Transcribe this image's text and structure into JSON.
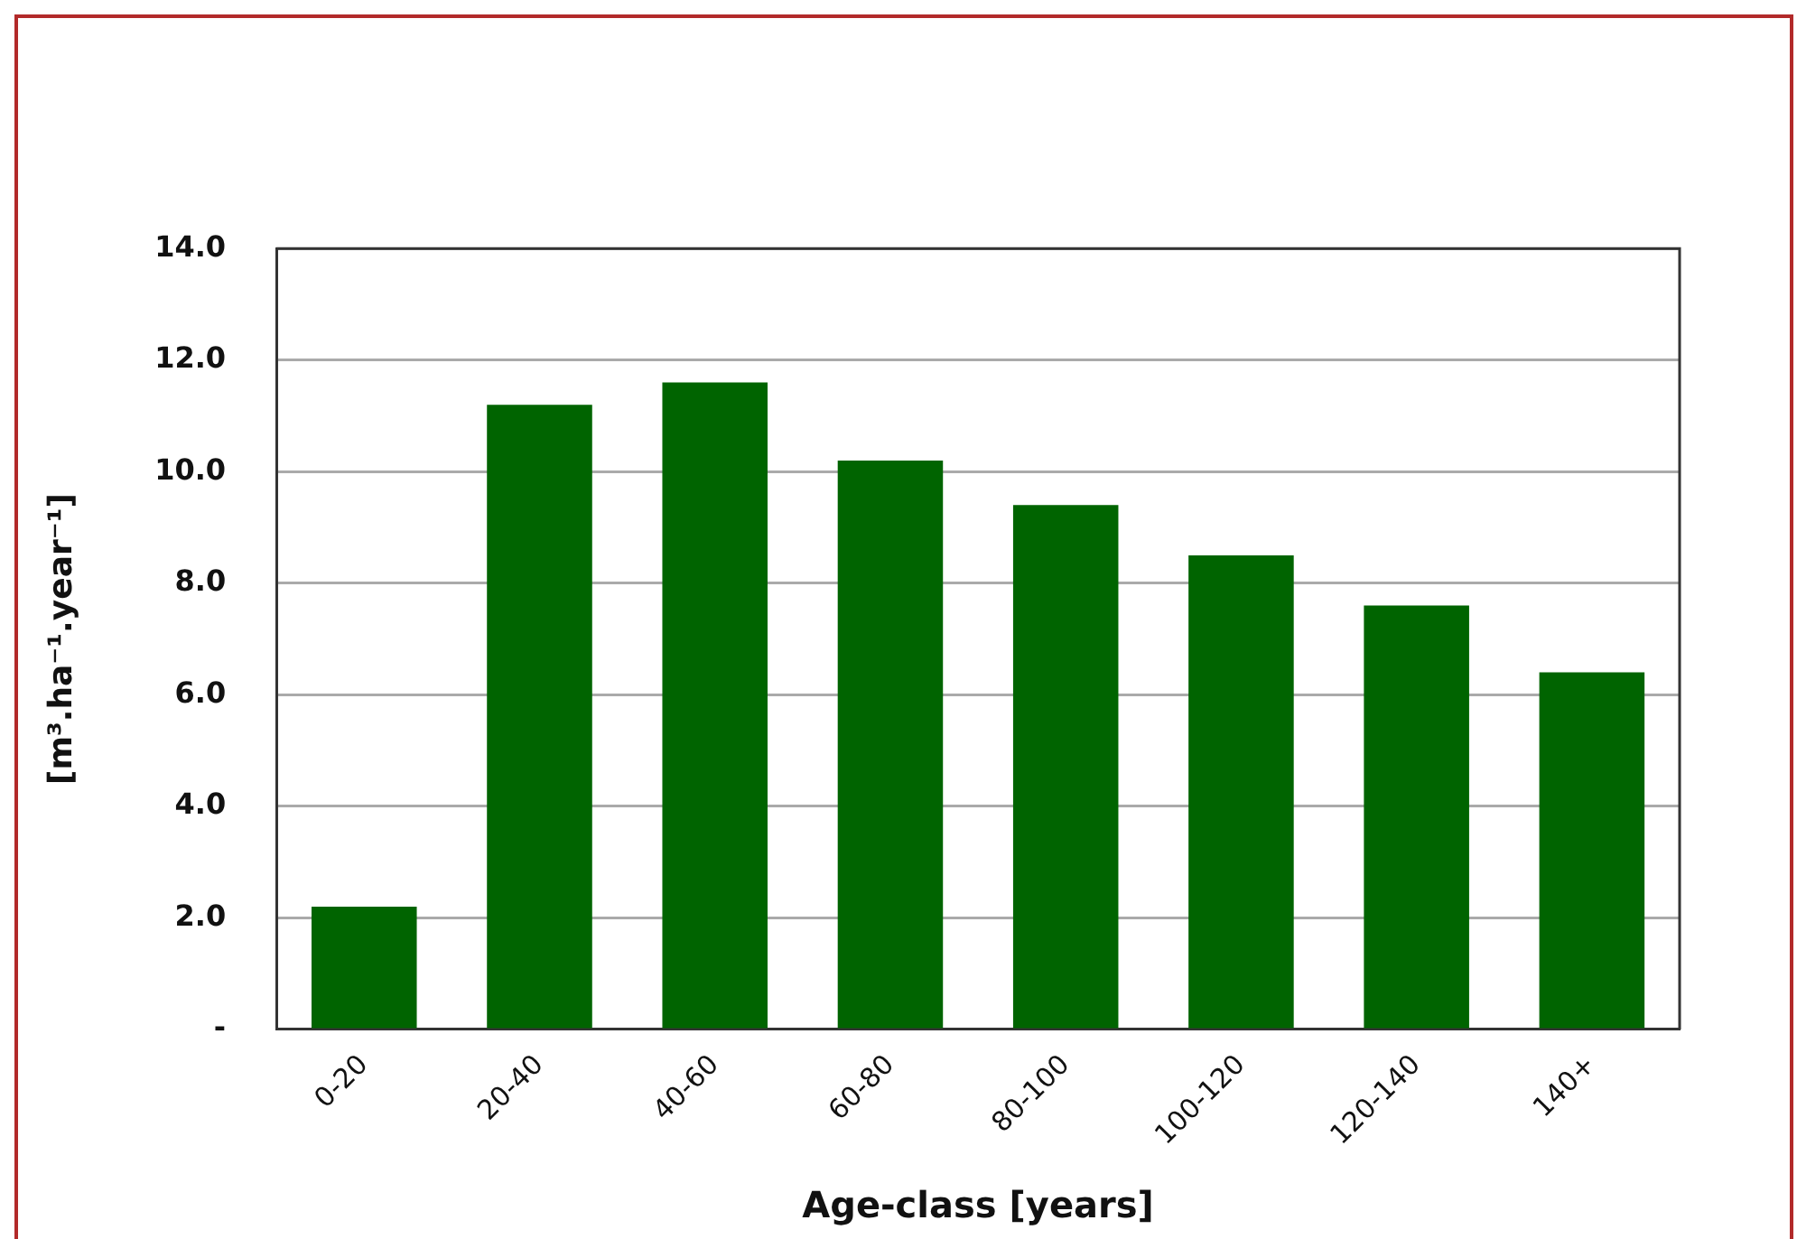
{
  "chart_data": {
    "type": "bar",
    "xlabel": "Age-class [years]",
    "ylabel": "[m³.ha⁻¹.year⁻¹]",
    "categories": [
      "0-20",
      "20-40",
      "40-60",
      "60-80",
      "80-100",
      "100-120",
      "120-140",
      "140+"
    ],
    "values": [
      2.2,
      11.2,
      11.6,
      10.2,
      9.4,
      8.5,
      7.6,
      6.4
    ],
    "color": "#006400",
    "ylim": [
      0,
      14
    ],
    "yticks": [
      {
        "value": 0,
        "label": "-"
      },
      {
        "value": 2,
        "label": "2.0"
      },
      {
        "value": 4,
        "label": "4.0"
      },
      {
        "value": 6,
        "label": "6.0"
      },
      {
        "value": 8,
        "label": "8.0"
      },
      {
        "value": 10,
        "label": "10.0"
      },
      {
        "value": 12,
        "label": "12.0"
      },
      {
        "value": 14,
        "label": "14.0"
      }
    ],
    "grid": "y",
    "legend": false
  }
}
